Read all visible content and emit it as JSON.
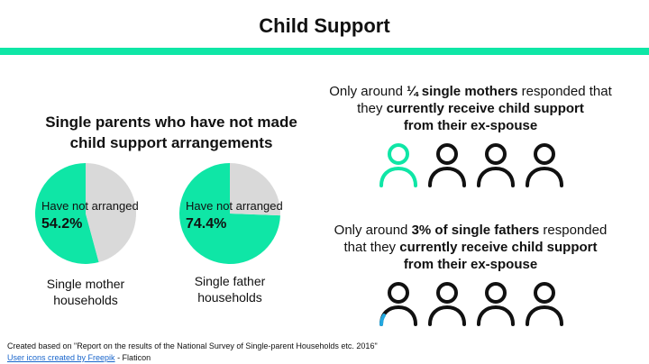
{
  "title": "Child Support",
  "colors": {
    "accent": "#0fe6a6",
    "pie_rest": "#d9d9d9",
    "icon_outline": "#111111",
    "icon_highlight": "#23a8e0",
    "link": "#1a66cc"
  },
  "chart_heading": {
    "line1": "Single parents who have not made",
    "line2": "child support arrangements"
  },
  "chart_data": [
    {
      "type": "pie",
      "slices": [
        {
          "label": "Have not arranged",
          "value": 54.2,
          "display": "54.2%",
          "color": "#0fe6a6"
        },
        {
          "value": 45.8,
          "color": "#d9d9d9"
        }
      ],
      "caption_line1": "Single mother",
      "caption_line2": "households"
    },
    {
      "type": "pie",
      "slices": [
        {
          "label": "Have not arranged",
          "value": 74.4,
          "display": "74.4%",
          "color": "#0fe6a6"
        },
        {
          "value": 25.6,
          "color": "#d9d9d9"
        }
      ],
      "caption_line1": "Single father",
      "caption_line2": "households"
    }
  ],
  "stat_mothers": {
    "l1a": "Only around ",
    "l1b": "¼ single mothers",
    "l1c": " responded that",
    "l2a": "they ",
    "l2b": "currently receive child support",
    "l3": "from their ex-spouse",
    "icons_total": 4,
    "icons_highlighted_fraction": 1.0,
    "icons_highlight_color": "#0fe6a6"
  },
  "stat_fathers": {
    "l1a": "Only around ",
    "l1b": "3% of single fathers",
    "l1c": " responded",
    "l2a": "that they ",
    "l2b": "currently receive child support",
    "l3": "from their ex-spouse",
    "icons_total": 4,
    "icons_highlighted_fraction": 0.12,
    "icons_highlight_color": "#23a8e0"
  },
  "credit": {
    "line1": "Created based on \"Report on the results of the National Survey of Single-parent Households etc. 2016\"",
    "link_text": "User icons created by Freepik",
    "line2_rest": " - Flaticon"
  }
}
